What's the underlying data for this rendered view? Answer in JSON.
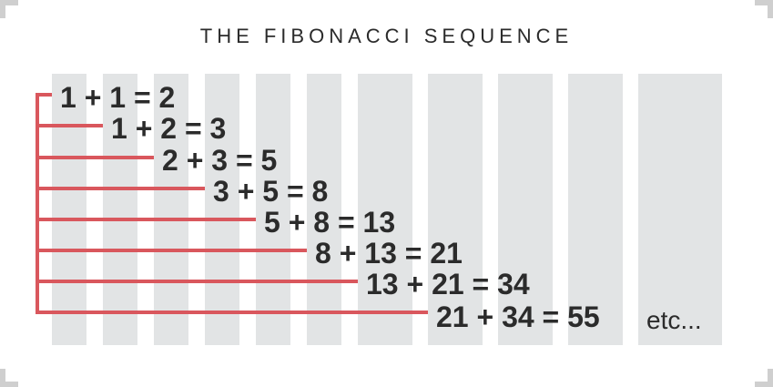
{
  "title": "THE FIBONACCI SEQUENCE",
  "colors": {
    "accent": "#d9575d",
    "column_fill": "#e2e4e5",
    "text": "#2b2b2b",
    "corner": "#cfcfcf"
  },
  "equations": [
    "1 + 1 = 2",
    "1 + 2 = 3",
    "2 + 3 = 5",
    "3 + 5 = 8",
    "5 + 8 = 13",
    "8 + 13 = 21",
    "13 + 21 = 34",
    "21 + 34 = 55"
  ],
  "etc_label": "etc..."
}
